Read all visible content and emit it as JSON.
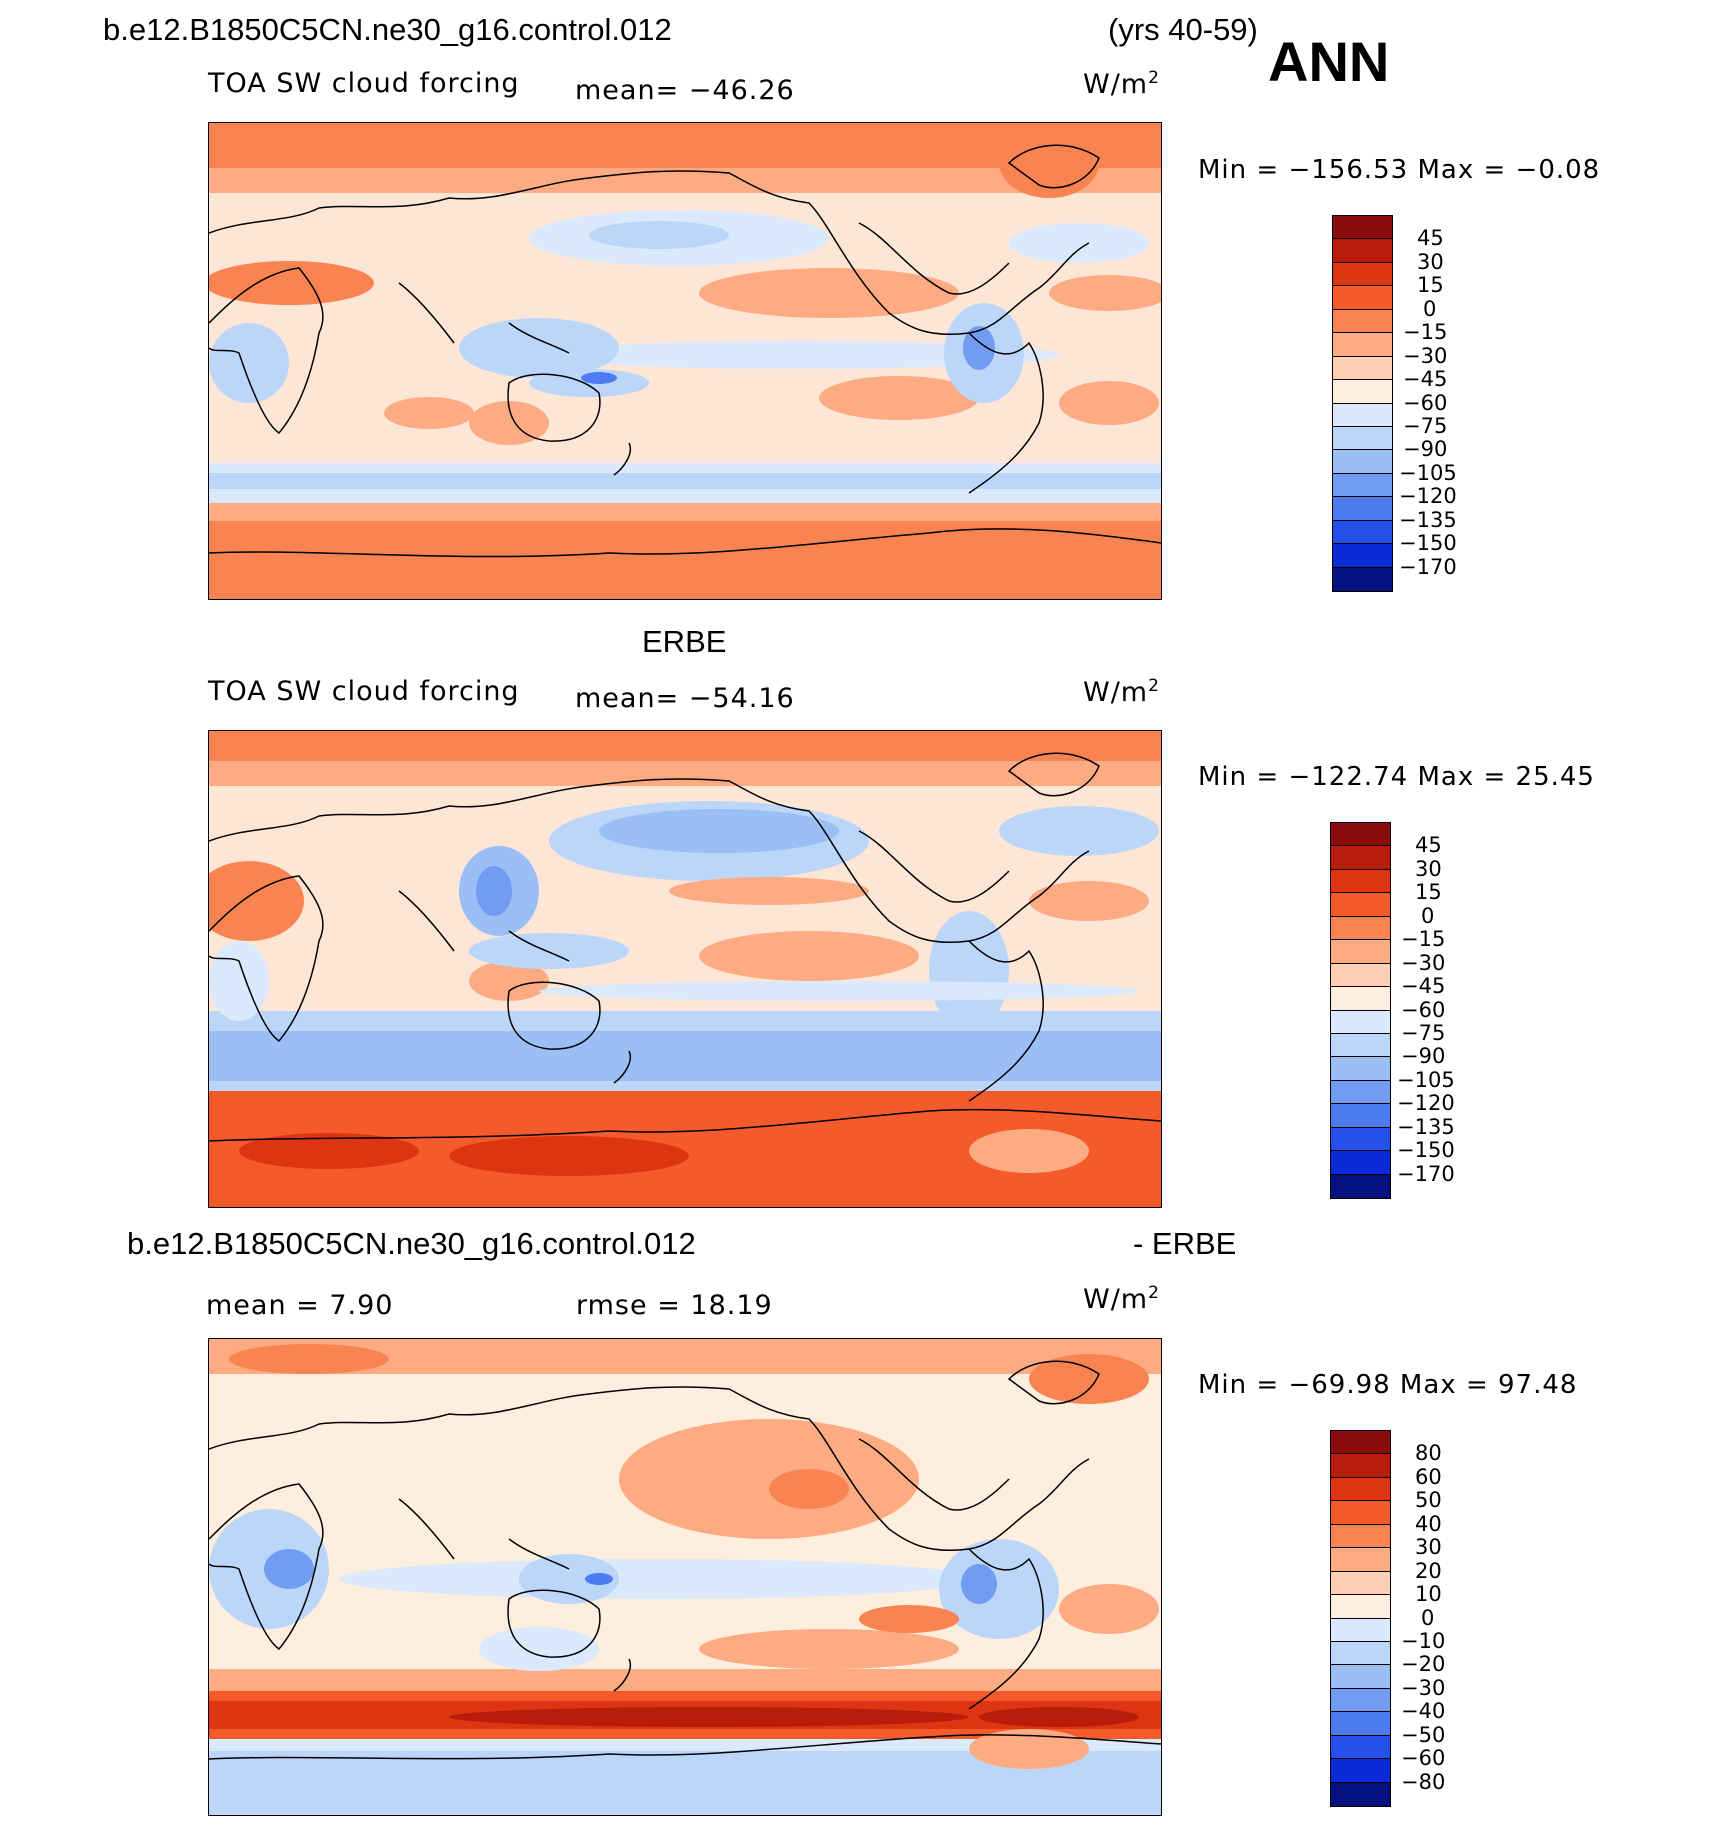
{
  "header": {
    "case_name": "b.e12.B1850C5CN.ne30_g16.control.012",
    "years": "(yrs 40-59)",
    "season": "ANN"
  },
  "panels": [
    {
      "id": "model",
      "title": "",
      "variable": "TOA SW cloud forcing",
      "mean": "mean= −46.26",
      "units": "W/m",
      "units_sup": "2",
      "minmax": "Min  =  −156.53  Max  =    −0.08",
      "colorbar_labels": [
        "45",
        "30",
        "15",
        "0",
        "−15",
        "−30",
        "−45",
        "−60",
        "−75",
        "−90",
        "−105",
        "−120",
        "−135",
        "−150",
        "−170"
      ]
    },
    {
      "id": "obs",
      "title": "ERBE",
      "variable": "TOA SW cloud forcing",
      "mean": "mean= −54.16",
      "units": "W/m",
      "units_sup": "2",
      "minmax": "Min  =  −122.74  Max  =    25.45",
      "colorbar_labels": [
        "45",
        "30",
        "15",
        "0",
        "−15",
        "−30",
        "−45",
        "−60",
        "−75",
        "−90",
        "−105",
        "−120",
        "−135",
        "−150",
        "−170"
      ]
    },
    {
      "id": "diff",
      "title_left": "b.e12.B1850C5CN.ne30_g16.control.012",
      "title_right": "- ERBE",
      "mean": "mean  =     7.90",
      "rmse": "rmse  =    18.19",
      "units": "W/m",
      "units_sup": "2",
      "minmax": "Min  =  −69.98  Max  =    97.48",
      "colorbar_labels": [
        "80",
        "60",
        "50",
        "40",
        "30",
        "20",
        "10",
        "0",
        "−10",
        "−20",
        "−30",
        "−40",
        "−50",
        "−60",
        "−80"
      ]
    }
  ],
  "colors": {
    "scale": [
      "#8b0a0a",
      "#b81d0c",
      "#dd3512",
      "#f55a2b",
      "#f98451",
      "#fcab83",
      "#fdd0b4",
      "#fdeede",
      "#dae9fb",
      "#bcd6f9",
      "#9bbef5",
      "#729cf2",
      "#4c7cef",
      "#2351ea",
      "#0a2bd6",
      "#05117e"
    ],
    "land_outline": "#000000"
  }
}
